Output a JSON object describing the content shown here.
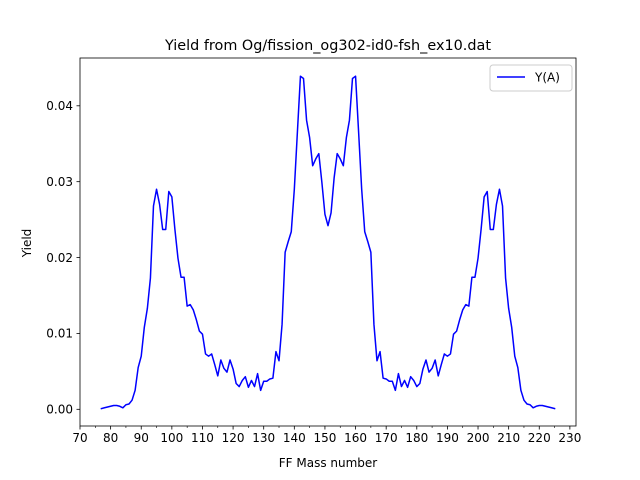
{
  "chart_data": {
    "type": "line",
    "title": "Yield from  Og/fission_og302-id0-fsh_ex10.dat",
    "xlabel": "FF Mass number",
    "ylabel": "Yield",
    "xlim": [
      70,
      232
    ],
    "ylim": [
      -0.0022,
      0.0463
    ],
    "x_ticks": [
      70,
      75,
      80,
      85,
      90,
      95,
      100,
      105,
      110,
      115,
      120,
      125,
      130,
      135,
      140,
      145,
      150,
      155,
      160,
      165,
      170,
      175,
      180,
      185,
      190,
      195,
      200,
      205,
      210,
      215,
      220,
      225,
      230
    ],
    "x_tick_labels": [
      "70",
      "80",
      "90",
      "100",
      "110",
      "120",
      "130",
      "140",
      "150",
      "160",
      "170",
      "180",
      "190",
      "200",
      "210",
      "220",
      "230"
    ],
    "x_tick_label_values": [
      70,
      80,
      90,
      100,
      110,
      120,
      130,
      140,
      150,
      160,
      170,
      180,
      190,
      200,
      210,
      220,
      230
    ],
    "y_ticks": [
      0.0,
      0.01,
      0.02,
      0.03,
      0.04
    ],
    "y_tick_labels": [
      "0.00",
      "0.01",
      "0.02",
      "0.03",
      "0.04"
    ],
    "grid": false,
    "legend": "top-right",
    "series": [
      {
        "name": "Y(A)",
        "color": "#0000ff",
        "x": [
          77,
          78,
          79,
          80,
          81,
          82,
          83,
          84,
          85,
          86,
          87,
          88,
          89,
          90,
          91,
          92,
          93,
          94,
          95,
          96,
          97,
          98,
          99,
          100,
          101,
          102,
          103,
          104,
          105,
          106,
          107,
          108,
          109,
          110,
          111,
          112,
          113,
          114,
          115,
          116,
          117,
          118,
          119,
          120,
          121,
          122,
          123,
          124,
          125,
          126,
          127,
          128,
          129,
          130,
          131,
          132,
          133,
          134,
          135,
          136,
          137,
          138,
          139,
          140,
          141,
          142,
          143,
          144,
          145,
          146,
          147,
          148,
          149,
          150,
          151,
          152,
          153,
          154,
          155,
          156,
          157,
          158,
          159,
          160,
          161,
          162,
          163,
          164,
          165,
          166,
          167,
          168,
          169,
          170,
          171,
          172,
          173,
          174,
          175,
          176,
          177,
          178,
          179,
          180,
          181,
          182,
          183,
          184,
          185,
          186,
          187,
          188,
          189,
          190,
          191,
          192,
          193,
          194,
          195,
          196,
          197,
          198,
          199,
          200,
          201,
          202,
          203,
          204,
          205,
          206,
          207,
          208,
          209,
          210,
          211,
          212,
          213,
          214,
          215,
          216,
          217,
          218,
          219,
          220,
          221,
          222,
          223,
          224,
          225
        ],
        "y": [
          0.0001,
          0.0002,
          0.0003,
          0.0004,
          0.0005,
          0.0005,
          0.0004,
          0.0002,
          0.0006,
          0.0007,
          0.0012,
          0.0025,
          0.0055,
          0.007,
          0.0108,
          0.0133,
          0.0173,
          0.0268,
          0.029,
          0.027,
          0.0237,
          0.0237,
          0.0287,
          0.028,
          0.0237,
          0.0199,
          0.0174,
          0.0174,
          0.0136,
          0.0138,
          0.0131,
          0.0118,
          0.0103,
          0.0099,
          0.0073,
          0.007,
          0.0073,
          0.0059,
          0.0044,
          0.0065,
          0.0054,
          0.0049,
          0.0065,
          0.0053,
          0.0034,
          0.003,
          0.0038,
          0.0043,
          0.0029,
          0.0038,
          0.003,
          0.0047,
          0.0025,
          0.0037,
          0.0037,
          0.004,
          0.0041,
          0.0076,
          0.0064,
          0.0112,
          0.0207,
          0.0221,
          0.0234,
          0.029,
          0.0365,
          0.0439,
          0.0436,
          0.0381,
          0.0358,
          0.0321,
          0.033,
          0.0337,
          0.0299,
          0.0257,
          0.0242,
          0.0259,
          0.0305,
          0.0337,
          0.033,
          0.0321,
          0.0358,
          0.0381,
          0.0436,
          0.0439,
          0.0365,
          0.029,
          0.0234,
          0.0221,
          0.0207,
          0.0112,
          0.0064,
          0.0076,
          0.0041,
          0.004,
          0.0037,
          0.0037,
          0.0025,
          0.0047,
          0.003,
          0.0038,
          0.0029,
          0.0043,
          0.0038,
          0.003,
          0.0034,
          0.0053,
          0.0065,
          0.0049,
          0.0054,
          0.0065,
          0.0044,
          0.0059,
          0.0073,
          0.007,
          0.0073,
          0.0099,
          0.0103,
          0.0118,
          0.0131,
          0.0138,
          0.0136,
          0.0174,
          0.0174,
          0.0199,
          0.0237,
          0.028,
          0.0287,
          0.0237,
          0.0237,
          0.027,
          0.029,
          0.0268,
          0.0173,
          0.0133,
          0.0108,
          0.007,
          0.0055,
          0.0025,
          0.0012,
          0.0007,
          0.0006,
          0.0002,
          0.0004,
          0.0005,
          0.0005,
          0.0004,
          0.0003,
          0.0002,
          0.0001
        ]
      }
    ]
  }
}
